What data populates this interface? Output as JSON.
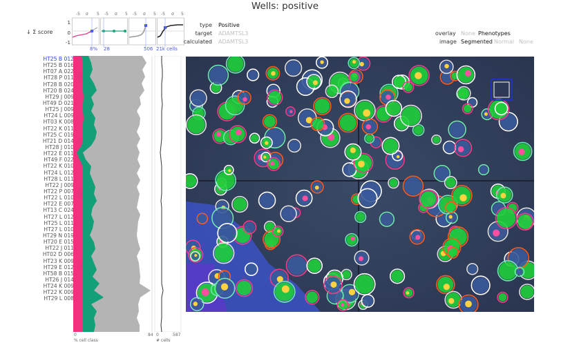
{
  "title": "Wells: positive",
  "score_axis": {
    "label": "↓ Σ score",
    "y_ticks": [
      "1",
      "0",
      "-1"
    ],
    "top_ticks": [
      "-5",
      "σ",
      "5"
    ],
    "charts": [
      {
        "value": "8%",
        "color": "#e8398a",
        "marker": "#3b4ed6"
      },
      {
        "value": "28",
        "color": "#1aa57a",
        "marker": "#1aa57a"
      },
      {
        "value": "506",
        "color": "#9a9a9a",
        "marker": "#3b4ed6"
      },
      {
        "value": "21k cells",
        "color": "#222222",
        "marker": "#3b4ed6"
      }
    ]
  },
  "info": {
    "type_key": "type",
    "type_val": "Positive",
    "target_key": "target",
    "target_val": "ADAMTSL3",
    "calc_key": "calculated",
    "calc_val": "ADAMTSL3"
  },
  "overlay": {
    "overlay_label": "overlay",
    "overlay_opts": [
      "None",
      "Phenotypes"
    ],
    "image_label": "image",
    "image_opts": [
      "Segmented",
      "Normal",
      "None"
    ]
  },
  "rows": [
    "HT25  B  012",
    "HT25  B  016",
    "HT07  A  022",
    "HT28  P  011",
    "HT28  B  020",
    "HT20  B  024",
    "HT29  J  009",
    "HT49  D  021",
    "HT25  J  009",
    "HT24  L  009",
    "HT03  K  008",
    "HT22  K  011",
    "HT25  C  019",
    "HT21  D  014",
    "HT28  J  010",
    "HT22  E  011",
    "HT49  F  022",
    "HT22  K  010",
    "HT24  L  012",
    "HT28  L  011",
    "HT22  J  009",
    "HT22  P  007",
    "HT22  L  010",
    "HT22  E  007",
    "HT13  C  024",
    "HT27  L  012",
    "HT25  L  011",
    "HT27  L  010",
    "HT29  N  019",
    "HT20  E  015",
    "HT22  J  011",
    "HT02  D  006",
    "HT23  K  009",
    "HT29  E  012",
    "HT58  B  015",
    "HT26  J  014",
    "HT24  K  009",
    "HT22  K  009",
    "HT29  L  008"
  ],
  "bottom_axis": {
    "left_min": "0",
    "left_max": "84",
    "left_caption": "% cell class",
    "right_min": "0",
    "right_max": "587",
    "right_caption": "# cells"
  },
  "series_colors": {
    "pink": "#f0327e",
    "green": "#12a079",
    "gray": "#b4b4b4",
    "selected": "#2b4bd8"
  }
}
